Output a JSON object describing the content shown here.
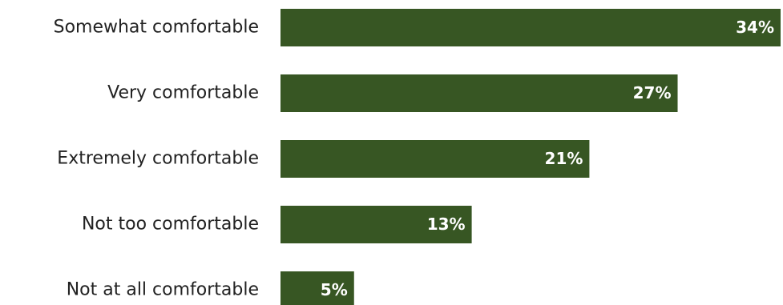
{
  "chart_data": {
    "type": "bar",
    "orientation": "horizontal",
    "title": "",
    "xlabel": "",
    "ylabel": "",
    "categories": [
      "Somewhat comfortable",
      "Very comfortable",
      "Extremely comfortable",
      "Not too comfortable",
      "Not at all comfortable"
    ],
    "values": [
      34,
      27,
      21,
      13,
      5
    ],
    "value_labels": [
      "34%",
      "27%",
      "21%",
      "13%",
      "5%"
    ],
    "unit": "%",
    "xlim": [
      0,
      34
    ],
    "grid": false,
    "legend": "none",
    "bar_color": "#375623",
    "value_label_color": "#ffffff",
    "category_label_color": "#222222"
  }
}
